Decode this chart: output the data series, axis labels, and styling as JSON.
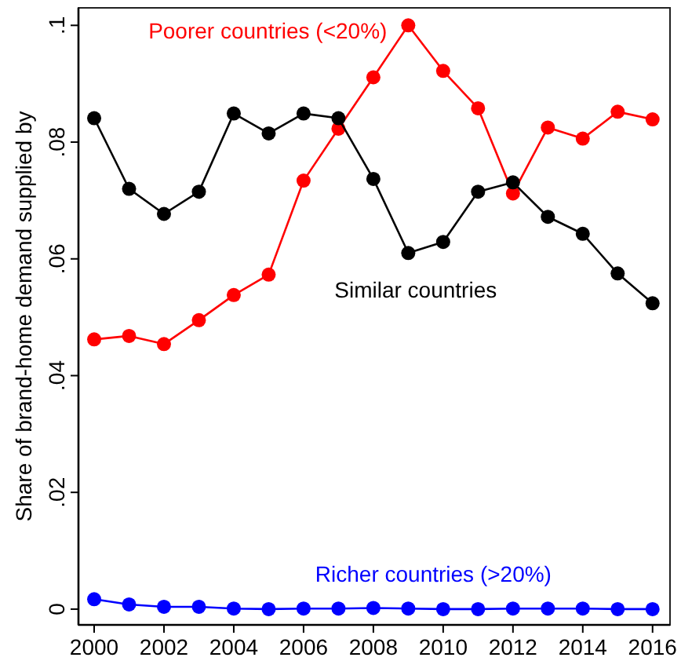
{
  "chart_data": {
    "type": "line",
    "ylabel": "Share of brand-home demand supplied by",
    "x": [
      2000,
      2001,
      2002,
      2003,
      2004,
      2005,
      2006,
      2007,
      2008,
      2009,
      2010,
      2011,
      2012,
      2013,
      2014,
      2015,
      2016
    ],
    "series": [
      {
        "name": "Poorer countries (<20%)",
        "color": "#ff0000",
        "values": [
          0.0462,
          0.0468,
          0.0454,
          0.0495,
          0.0538,
          0.0573,
          0.0734,
          0.0823,
          0.0911,
          0.1,
          0.0922,
          0.0858,
          0.0712,
          0.0825,
          0.0806,
          0.0852,
          0.0839
        ]
      },
      {
        "name": "Similar countries",
        "color": "#000000",
        "values": [
          0.0841,
          0.072,
          0.0677,
          0.0715,
          0.0849,
          0.0815,
          0.0849,
          0.0841,
          0.0737,
          0.061,
          0.0629,
          0.0715,
          0.0731,
          0.0672,
          0.0643,
          0.0575,
          0.0524
        ]
      },
      {
        "name": "Richer countries (>20%)",
        "color": "#0000ff",
        "values": [
          0.0017,
          0.0008,
          0.0004,
          0.0004,
          0.0001,
          0,
          0.0001,
          0.0001,
          0.0002,
          0.0001,
          0,
          0,
          0.0001,
          0.0001,
          0.0001,
          0,
          0
        ]
      }
    ],
    "xlim": [
      1999.55,
      2016.5
    ],
    "xticks": [
      2000,
      2002,
      2004,
      2006,
      2008,
      2010,
      2012,
      2014,
      2016
    ],
    "ylim": [
      -0.0027,
      0.103
    ],
    "yticks": [
      {
        "value": 0,
        "label": "0"
      },
      {
        "value": 0.02,
        "label": ".02"
      },
      {
        "value": 0.04,
        "label": ".04"
      },
      {
        "value": 0.06,
        "label": ".06"
      },
      {
        "value": 0.08,
        "label": ".08"
      },
      {
        "value": 0.1,
        "label": ".1"
      }
    ],
    "marker": "circle",
    "grid": false
  }
}
